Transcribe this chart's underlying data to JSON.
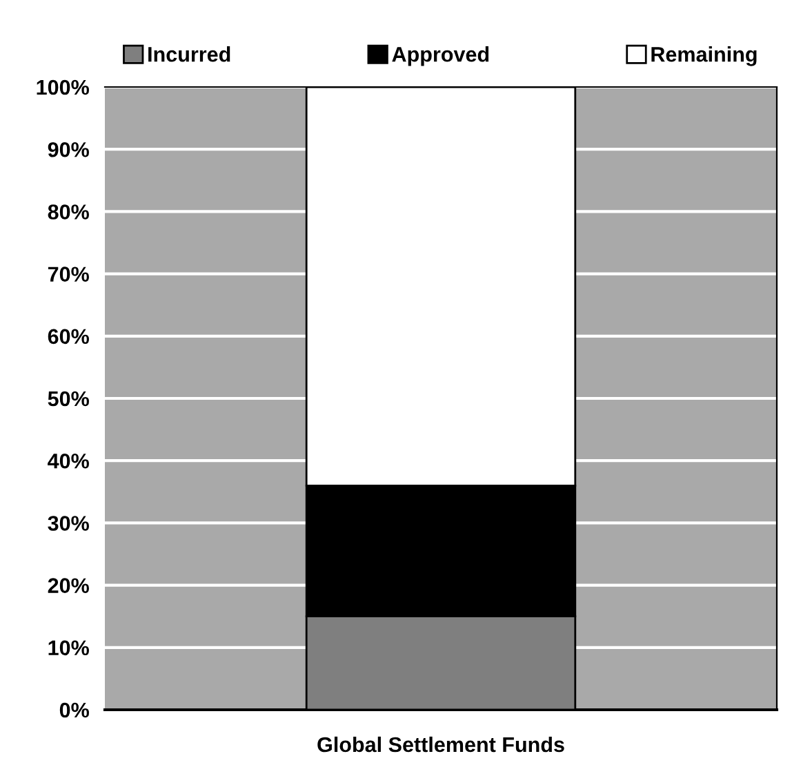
{
  "chart_data": {
    "type": "bar",
    "stacked": true,
    "categories": [
      "Global Settlement Funds"
    ],
    "series": [
      {
        "name": "Incurred",
        "color": "#7f7f7f",
        "values": [
          15
        ]
      },
      {
        "name": "Approved",
        "color": "#000000",
        "values": [
          21
        ]
      },
      {
        "name": "Remaining",
        "color": "#ffffff",
        "values": [
          64
        ]
      }
    ],
    "ylim": [
      0,
      100
    ],
    "yticks": [
      {
        "value": 0,
        "label": "0%"
      },
      {
        "value": 10,
        "label": "10%"
      },
      {
        "value": 20,
        "label": "20%"
      },
      {
        "value": 30,
        "label": "30%"
      },
      {
        "value": 40,
        "label": "40%"
      },
      {
        "value": 50,
        "label": "50%"
      },
      {
        "value": 60,
        "label": "60%"
      },
      {
        "value": 70,
        "label": "70%"
      },
      {
        "value": 80,
        "label": "80%"
      },
      {
        "value": 90,
        "label": "90%"
      },
      {
        "value": 100,
        "label": "100%"
      }
    ],
    "grid": "y",
    "legend": "top"
  }
}
